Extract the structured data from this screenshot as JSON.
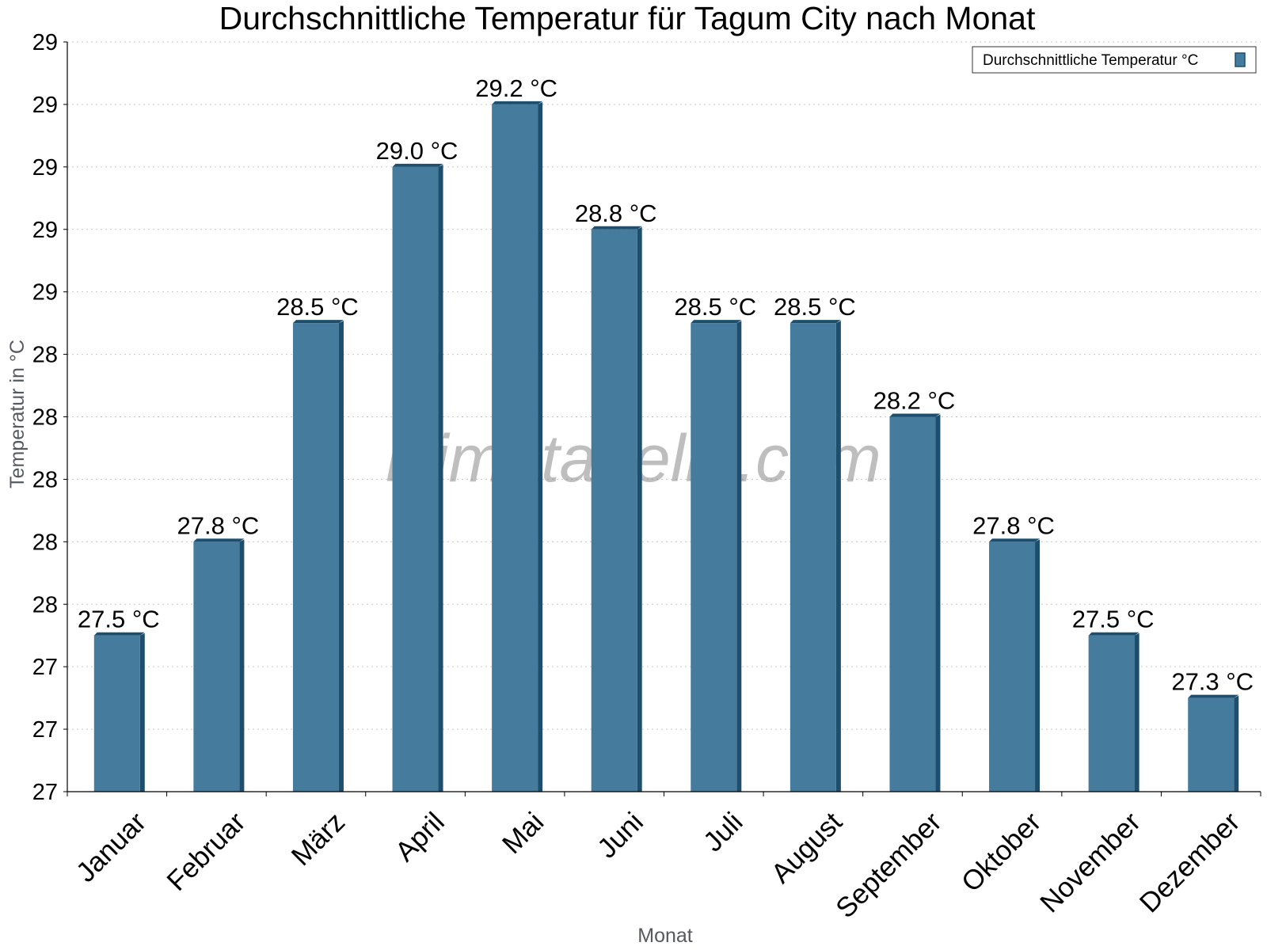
{
  "chart_data": {
    "type": "bar",
    "title": "Durchschnittliche Temperatur für Tagum City nach Monat",
    "xlabel": "Monat",
    "ylabel": "Temperatur in °C",
    "categories": [
      "Januar",
      "Februar",
      "März",
      "April",
      "Mai",
      "Juni",
      "Juli",
      "August",
      "September",
      "Oktober",
      "November",
      "Dezember"
    ],
    "series": [
      {
        "name": "Durchschnittliche Temperatur °C",
        "values": [
          27.5,
          27.8,
          28.5,
          29.0,
          29.2,
          28.8,
          28.5,
          28.5,
          28.2,
          27.8,
          27.5,
          27.3
        ],
        "labels": [
          "27.5 °C",
          "27.8 °C",
          "28.5 °C",
          "29.0 °C",
          "29.2 °C",
          "28.8 °C",
          "28.5 °C",
          "28.5 °C",
          "28.2 °C",
          "27.8 °C",
          "27.5 °C",
          "27.3 °C"
        ],
        "color": "#457b9d",
        "shade_color": "#1d4e6e"
      }
    ],
    "ylim": [
      27.0,
      29.4
    ],
    "yticks": [
      27.0,
      27.2,
      27.4,
      27.6,
      27.8,
      28.0,
      28.2,
      28.4,
      28.6,
      28.8,
      29.0,
      29.2,
      29.4
    ],
    "ytick_labels": [
      "27",
      "27",
      "27",
      "28",
      "28",
      "28",
      "28",
      "28",
      "29",
      "29",
      "29",
      "29",
      "29"
    ],
    "grid": true,
    "legend_position": "top-right",
    "watermark": "klimatabelle.com"
  }
}
